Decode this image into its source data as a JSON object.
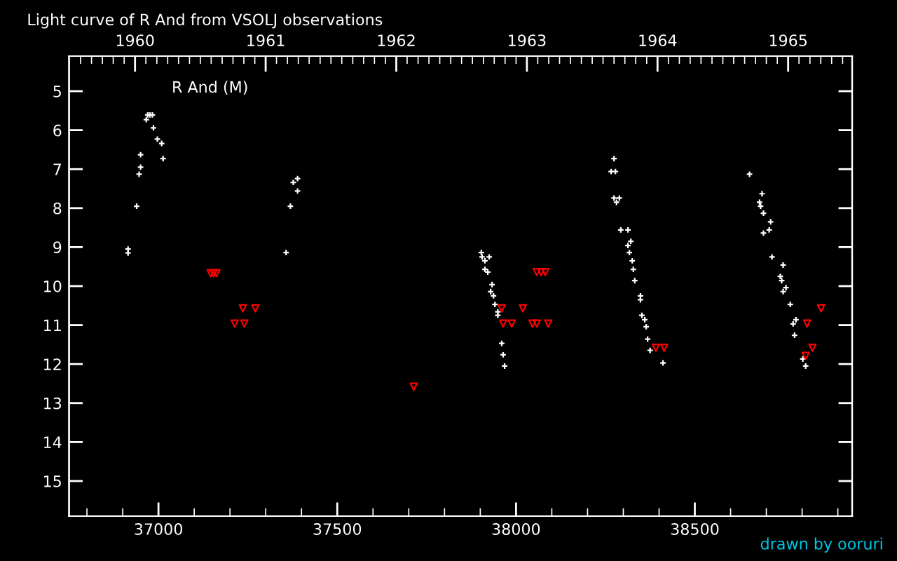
{
  "chart_data": {
    "type": "scatter",
    "title": "Light curve of R And from VSOLJ observations",
    "annotations": [
      "R And (M)",
      "drawn by ooruri"
    ],
    "series": [
      {
        "marker": "cross",
        "color": "#ffffff",
        "x": [
          36915,
          36915,
          36939,
          36946,
          36950,
          36950,
          36966,
          36970,
          36976,
          36983,
          36986,
          36997,
          37009,
          37013,
          37357,
          37369,
          37377,
          37389,
          37389,
          37903,
          37905,
          37925,
          37913,
          37913,
          37921,
          37933,
          37929,
          37937,
          37941,
          37949,
          37949,
          37960,
          37964,
          37968,
          38274,
          38266,
          38278,
          38274,
          38289,
          38281,
          38293,
          38313,
          38321,
          38313,
          38317,
          38325,
          38328,
          38332,
          38348,
          38348,
          38352,
          38360,
          38364,
          38368,
          38375,
          38411,
          38653,
          38688,
          38681,
          38684,
          38692,
          38712,
          38708,
          38692,
          38716,
          38747,
          38739,
          38743,
          38755,
          38747,
          38767,
          38783,
          38775,
          38779,
          38802,
          38810
        ],
        "values": [
          9.05,
          9.15,
          7.95,
          7.13,
          6.95,
          6.63,
          5.73,
          5.61,
          5.61,
          5.61,
          5.94,
          6.23,
          6.34,
          6.73,
          9.14,
          7.95,
          7.34,
          7.24,
          7.56,
          9.14,
          9.25,
          9.25,
          9.35,
          9.57,
          9.64,
          9.96,
          10.14,
          10.25,
          10.47,
          10.66,
          10.75,
          11.47,
          11.76,
          12.05,
          6.73,
          7.06,
          7.06,
          7.74,
          7.74,
          7.85,
          8.56,
          8.56,
          8.85,
          8.96,
          9.14,
          9.35,
          9.57,
          9.86,
          10.25,
          10.35,
          10.75,
          10.86,
          11.04,
          11.36,
          11.65,
          11.97,
          7.13,
          7.63,
          7.85,
          7.95,
          8.13,
          8.35,
          8.56,
          8.64,
          9.25,
          9.46,
          9.75,
          9.86,
          10.04,
          10.14,
          10.47,
          10.86,
          10.97,
          11.26,
          11.87,
          12.05
        ]
      },
      {
        "marker": "triangle",
        "color": "#ff0000",
        "x": [
          37146,
          37154,
          37162,
          37213,
          37240,
          37236,
          37271,
          37714,
          37960,
          37964,
          37988,
          38019,
          38046,
          38058,
          38090,
          38058,
          38070,
          38082,
          38391,
          38414,
          38853,
          38814,
          38829,
          38810
        ],
        "values": [
          9.67,
          9.67,
          9.67,
          10.96,
          10.96,
          10.57,
          10.57,
          12.58,
          10.57,
          10.96,
          10.96,
          10.57,
          10.96,
          10.96,
          10.96,
          9.64,
          9.64,
          9.64,
          11.58,
          11.58,
          10.57,
          10.96,
          11.58,
          11.79
        ]
      }
    ],
    "xlim": [
      36750,
      38940
    ],
    "xticks": [
      {
        "value": 36800,
        "label": null
      },
      {
        "value": 36900,
        "label": null
      },
      37000,
      {
        "value": 37100,
        "label": null
      },
      {
        "value": 37200,
        "label": null
      },
      {
        "value": 37300,
        "label": null
      },
      {
        "value": 37400,
        "label": null
      },
      37500,
      {
        "value": 37600,
        "label": null
      },
      {
        "value": 37700,
        "label": null
      },
      {
        "value": 37800,
        "label": null
      },
      {
        "value": 37900,
        "label": null
      },
      38000,
      {
        "value": 38100,
        "label": null
      },
      {
        "value": 38200,
        "label": null
      },
      {
        "value": 38300,
        "label": null
      },
      {
        "value": 38400,
        "label": null
      },
      38500,
      {
        "value": 38600,
        "label": null
      },
      {
        "value": 38700,
        "label": null
      },
      {
        "value": 38800,
        "label": null
      },
      {
        "value": 38900,
        "label": null
      }
    ],
    "ylim": [
      15.9,
      4.1
    ],
    "yticks": [
      5,
      6,
      7,
      8,
      9,
      10,
      11,
      12,
      13,
      14,
      15
    ],
    "x2lim": [
      1959.495,
      1965.49
    ],
    "x2ticks": [
      {
        "value": 1959.583,
        "label": null
      },
      {
        "value": 1959.667,
        "label": null
      },
      {
        "value": 1959.75,
        "label": null
      },
      {
        "value": 1959.833,
        "label": null
      },
      {
        "value": 1959.917,
        "label": null
      },
      1960,
      {
        "value": 1960.083,
        "label": null
      },
      {
        "value": 1960.167,
        "label": null
      },
      {
        "value": 1960.25,
        "label": null
      },
      {
        "value": 1960.333,
        "label": null
      },
      {
        "value": 1960.417,
        "label": null
      },
      {
        "value": 1960.5,
        "label": null
      },
      {
        "value": 1960.583,
        "label": null
      },
      {
        "value": 1960.667,
        "label": null
      },
      {
        "value": 1960.75,
        "label": null
      },
      {
        "value": 1960.833,
        "label": null
      },
      {
        "value": 1960.917,
        "label": null
      },
      1961,
      {
        "value": 1961.083,
        "label": null
      },
      {
        "value": 1961.167,
        "label": null
      },
      {
        "value": 1961.25,
        "label": null
      },
      {
        "value": 1961.333,
        "label": null
      },
      {
        "value": 1961.417,
        "label": null
      },
      {
        "value": 1961.5,
        "label": null
      },
      {
        "value": 1961.583,
        "label": null
      },
      {
        "value": 1961.667,
        "label": null
      },
      {
        "value": 1961.75,
        "label": null
      },
      {
        "value": 1961.833,
        "label": null
      },
      {
        "value": 1961.917,
        "label": null
      },
      1962,
      {
        "value": 1962.083,
        "label": null
      },
      {
        "value": 1962.167,
        "label": null
      },
      {
        "value": 1962.25,
        "label": null
      },
      {
        "value": 1962.333,
        "label": null
      },
      {
        "value": 1962.417,
        "label": null
      },
      {
        "value": 1962.5,
        "label": null
      },
      {
        "value": 1962.583,
        "label": null
      },
      {
        "value": 1962.667,
        "label": null
      },
      {
        "value": 1962.75,
        "label": null
      },
      {
        "value": 1962.833,
        "label": null
      },
      {
        "value": 1962.917,
        "label": null
      },
      1963,
      {
        "value": 1963.083,
        "label": null
      },
      {
        "value": 1963.167,
        "label": null
      },
      {
        "value": 1963.25,
        "label": null
      },
      {
        "value": 1963.333,
        "label": null
      },
      {
        "value": 1963.417,
        "label": null
      },
      {
        "value": 1963.5,
        "label": null
      },
      {
        "value": 1963.583,
        "label": null
      },
      {
        "value": 1963.667,
        "label": null
      },
      {
        "value": 1963.75,
        "label": null
      },
      {
        "value": 1963.833,
        "label": null
      },
      {
        "value": 1963.917,
        "label": null
      },
      1964,
      {
        "value": 1964.083,
        "label": null
      },
      {
        "value": 1964.167,
        "label": null
      },
      {
        "value": 1964.25,
        "label": null
      },
      {
        "value": 1964.333,
        "label": null
      },
      {
        "value": 1964.417,
        "label": null
      },
      {
        "value": 1964.5,
        "label": null
      },
      {
        "value": 1964.583,
        "label": null
      },
      {
        "value": 1964.667,
        "label": null
      },
      {
        "value": 1964.75,
        "label": null
      },
      {
        "value": 1964.833,
        "label": null
      },
      {
        "value": 1964.917,
        "label": null
      },
      1965,
      {
        "value": 1965.083,
        "label": null
      },
      {
        "value": 1965.167,
        "label": null
      },
      {
        "value": 1965.25,
        "label": null
      },
      {
        "value": 1965.333,
        "label": null
      },
      {
        "value": 1965.417,
        "label": null
      }
    ],
    "grid": false,
    "legend": false
  }
}
